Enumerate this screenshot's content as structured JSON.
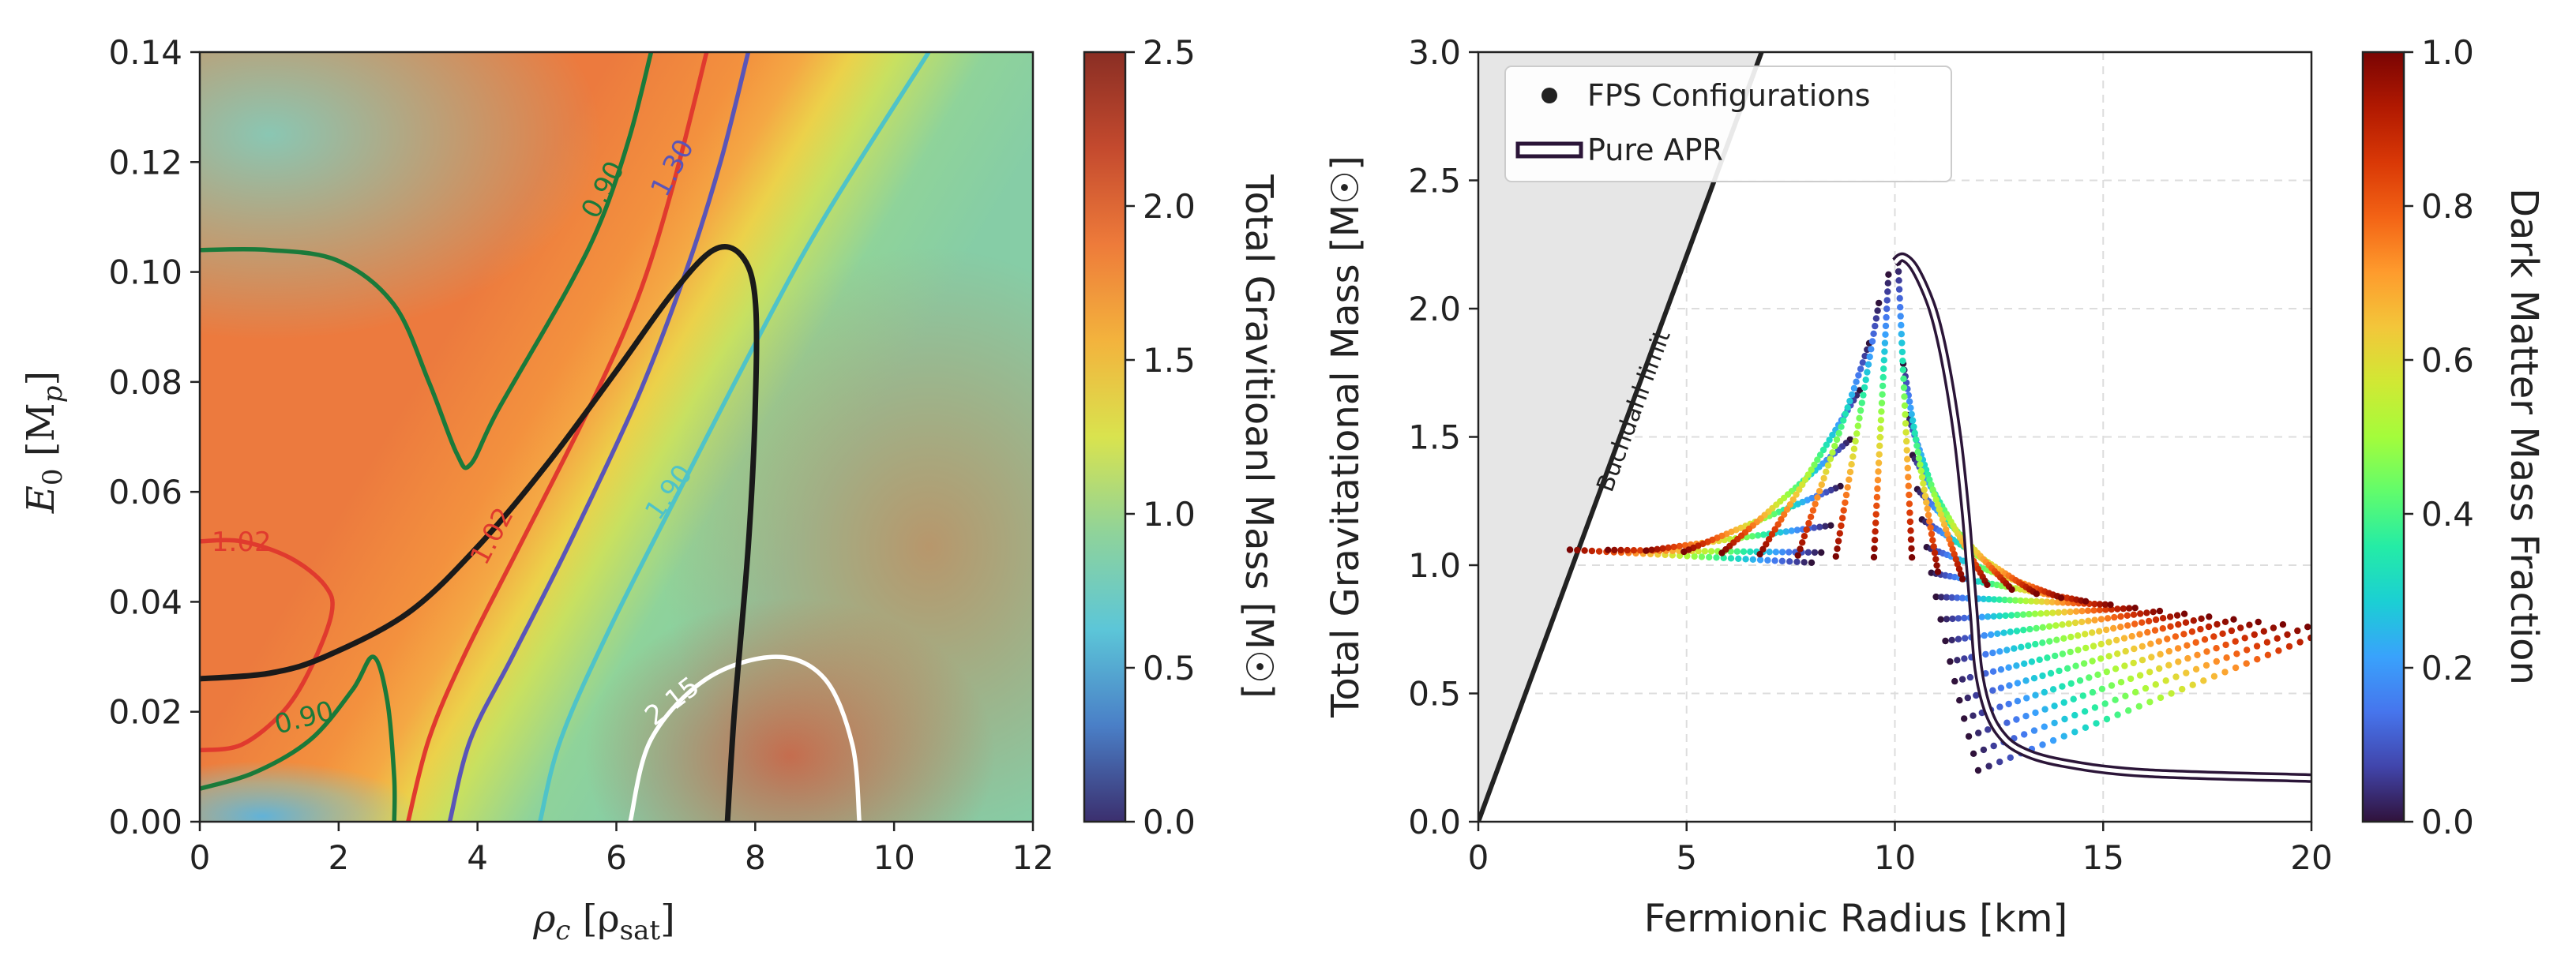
{
  "chart_data": [
    {
      "type": "heatmap",
      "title": "",
      "xlabel": "ρc [ρsat]",
      "ylabel": "E0 [Mp]",
      "xlim": [
        0,
        12
      ],
      "ylim": [
        0,
        0.14
      ],
      "xticks": [
        "0",
        "2",
        "4",
        "6",
        "8",
        "10",
        "12"
      ],
      "yticks": [
        "0.00",
        "0.02",
        "0.04",
        "0.06",
        "0.08",
        "0.10",
        "0.12",
        "0.14"
      ],
      "colorbar": {
        "label": "Total Gravitioanl Mass [M☉]",
        "range": [
          0,
          2.5
        ],
        "ticks": [
          "0.0",
          "0.5",
          "1.0",
          "1.5",
          "2.0",
          "2.5"
        ],
        "colors": [
          "#3b2f6e",
          "#4a7fc7",
          "#5cc6d8",
          "#8fd39a",
          "#d9e34e",
          "#f3b33d",
          "#ee7b3a",
          "#c44a2e",
          "#8a2e24"
        ]
      },
      "heatmap_transition": {
        "description": "mass rises from ~0.9 (left, teal-green) to ~2.1 (right, orange) across a band following rho_c ≈ 3 + 52*E0",
        "points": [
          [
            2.8,
            0.0
          ],
          [
            3.4,
            0.02
          ],
          [
            4.3,
            0.04
          ],
          [
            5.3,
            0.06
          ],
          [
            6.3,
            0.08
          ],
          [
            7.4,
            0.1
          ],
          [
            8.4,
            0.12
          ],
          [
            9.4,
            0.14
          ]
        ]
      },
      "contours": [
        {
          "level": "0.90",
          "color": "#1a7a3a",
          "points": [
            [
              0.0,
              0.006
            ],
            [
              0.8,
              0.009
            ],
            [
              1.6,
              0.015
            ],
            [
              2.2,
              0.024
            ],
            [
              2.5,
              0.03
            ],
            [
              2.7,
              0.022
            ],
            [
              2.8,
              0.008
            ],
            [
              2.8,
              0.0
            ]
          ]
        },
        {
          "level": "0.90",
          "color": "#1a7a3a",
          "points": [
            [
              0.0,
              0.104
            ],
            [
              1.0,
              0.104
            ],
            [
              2.0,
              0.102
            ],
            [
              2.8,
              0.094
            ],
            [
              3.3,
              0.08
            ],
            [
              3.7,
              0.067
            ],
            [
              3.9,
              0.065
            ],
            [
              4.3,
              0.075
            ],
            [
              5.3,
              0.097
            ],
            [
              5.8,
              0.11
            ],
            [
              6.2,
              0.125
            ],
            [
              6.5,
              0.14
            ]
          ]
        },
        {
          "level": "1.02",
          "color": "#e03a2e",
          "points": [
            [
              0.0,
              0.013
            ],
            [
              0.6,
              0.014
            ],
            [
              1.2,
              0.02
            ],
            [
              1.6,
              0.028
            ],
            [
              1.9,
              0.038
            ],
            [
              1.8,
              0.043
            ],
            [
              1.3,
              0.048
            ],
            [
              0.6,
              0.051
            ],
            [
              0.0,
              0.051
            ]
          ]
        },
        {
          "level": "1.02",
          "color": "#e03a2e",
          "points": [
            [
              3.0,
              0.0
            ],
            [
              3.3,
              0.015
            ],
            [
              3.8,
              0.03
            ],
            [
              4.6,
              0.05
            ],
            [
              5.6,
              0.075
            ],
            [
              6.3,
              0.095
            ],
            [
              6.8,
              0.115
            ],
            [
              7.3,
              0.14
            ]
          ]
        },
        {
          "level": "1.30",
          "color": "#5a55b8",
          "points": [
            [
              3.6,
              0.0
            ],
            [
              3.9,
              0.015
            ],
            [
              4.5,
              0.03
            ],
            [
              5.3,
              0.05
            ],
            [
              6.3,
              0.077
            ],
            [
              7.0,
              0.1
            ],
            [
              7.5,
              0.12
            ],
            [
              7.9,
              0.14
            ]
          ]
        },
        {
          "level": "1.90",
          "color": "#4fc3c8",
          "points": [
            [
              4.9,
              0.0
            ],
            [
              5.2,
              0.015
            ],
            [
              5.9,
              0.035
            ],
            [
              6.9,
              0.06
            ],
            [
              8.0,
              0.087
            ],
            [
              9.0,
              0.11
            ],
            [
              10.5,
              0.14
            ]
          ]
        },
        {
          "level": "2.15",
          "color": "#ffffff",
          "points": [
            [
              6.2,
              0.0
            ],
            [
              6.5,
              0.015
            ],
            [
              7.3,
              0.026
            ],
            [
              8.3,
              0.03
            ],
            [
              9.0,
              0.026
            ],
            [
              9.4,
              0.014
            ],
            [
              9.5,
              0.0
            ]
          ]
        }
      ],
      "boundary": {
        "color": "#1a1a1a",
        "points": [
          [
            0.0,
            0.026
          ],
          [
            1.0,
            0.027
          ],
          [
            1.8,
            0.03
          ],
          [
            3.0,
            0.038
          ],
          [
            4.0,
            0.05
          ],
          [
            5.0,
            0.065
          ],
          [
            6.0,
            0.082
          ],
          [
            6.8,
            0.096
          ],
          [
            7.4,
            0.104
          ],
          [
            7.8,
            0.103
          ],
          [
            8.0,
            0.095
          ],
          [
            8.0,
            0.075
          ],
          [
            7.9,
            0.05
          ],
          [
            7.7,
            0.02
          ],
          [
            7.6,
            0.0
          ]
        ]
      }
    },
    {
      "type": "scatter",
      "title": "",
      "xlabel": "Fermionic Radius [km]",
      "ylabel": "Total Gravitational Mass [M☉]",
      "xlim": [
        0,
        20
      ],
      "ylim": [
        0,
        3.0
      ],
      "xticks": [
        "0",
        "5",
        "10",
        "15",
        "20"
      ],
      "yticks": [
        "0.0",
        "0.5",
        "1.0",
        "1.5",
        "2.0",
        "2.5",
        "3.0"
      ],
      "grid": true,
      "legend": {
        "position": "top-left",
        "entries": [
          "FPS Configurations",
          "Pure APR"
        ]
      },
      "annotation": "Buchdahl limit",
      "buchdahl_limit": {
        "x": [
          0,
          6.8
        ],
        "y": [
          0,
          3.0
        ]
      },
      "pure_apr": {
        "x": [
          20.0,
          16.0,
          14.0,
          13.0,
          12.5,
          12.2,
          12.0,
          11.9,
          11.8,
          11.7,
          11.5,
          11.2,
          10.9,
          10.5,
          10.2,
          10.0
        ],
        "y": [
          0.17,
          0.19,
          0.23,
          0.28,
          0.35,
          0.45,
          0.6,
          0.8,
          1.0,
          1.2,
          1.5,
          1.8,
          2.0,
          2.15,
          2.2,
          2.18
        ]
      },
      "colorbar": {
        "label": "Dark Matter Mass Fraction",
        "range": [
          0,
          1.0
        ],
        "ticks": [
          "0.0",
          "0.2",
          "0.4",
          "0.6",
          "0.8",
          "1.0"
        ],
        "colors": [
          "#30123b",
          "#4145ab",
          "#4675ed",
          "#39a2fc",
          "#1bcfd4",
          "#24eca6",
          "#61fc6c",
          "#a4fc3b",
          "#d1e834",
          "#f3c63a",
          "#fe9b2d",
          "#f36315",
          "#d93806",
          "#b11901",
          "#7a0403"
        ]
      }
    }
  ]
}
